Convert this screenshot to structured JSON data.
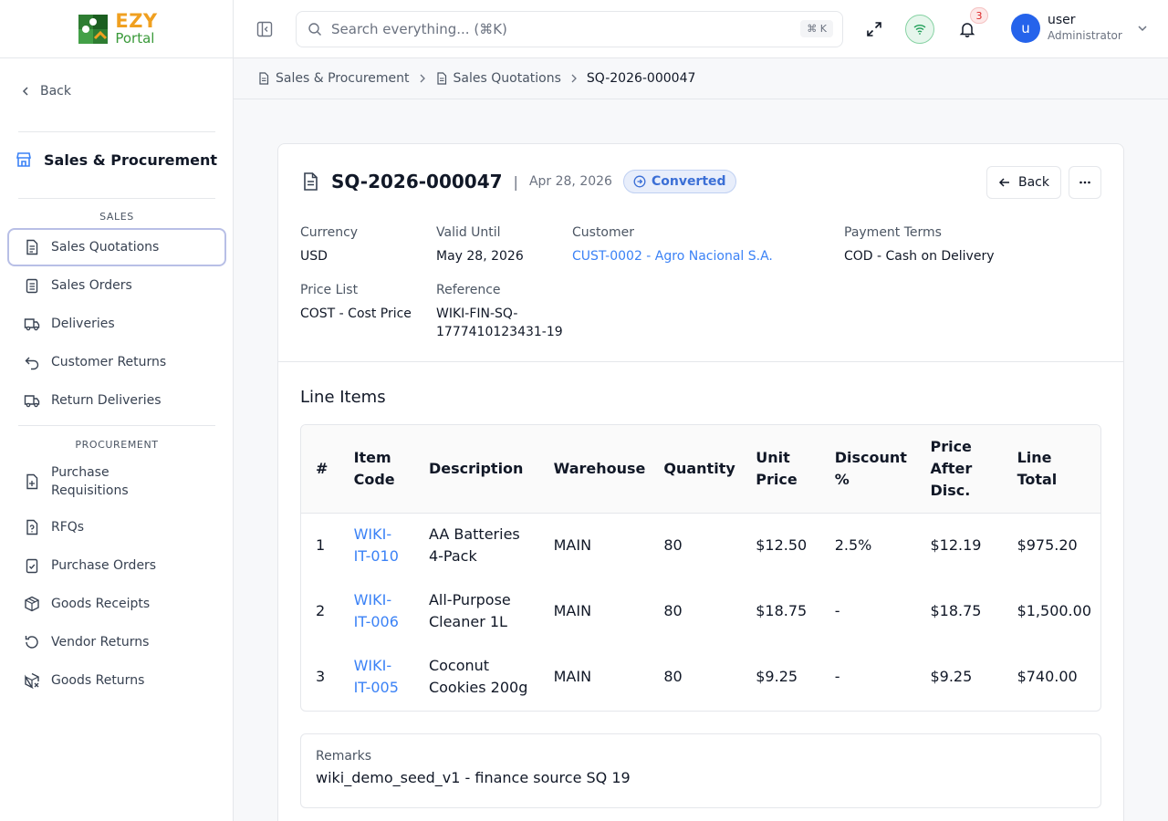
{
  "brand": {
    "logo_line1": "EZY",
    "logo_line2": "Portal"
  },
  "sidebar": {
    "back_label": "Back",
    "module_title": "Sales & Procurement",
    "sections": [
      {
        "label": "SALES",
        "items": [
          {
            "label": "Sales Quotations",
            "icon": "document-icon",
            "active": true
          },
          {
            "label": "Sales Orders",
            "icon": "clipboard-list-icon"
          },
          {
            "label": "Deliveries",
            "icon": "truck-icon"
          },
          {
            "label": "Customer Returns",
            "icon": "undo-arrow-icon"
          },
          {
            "label": "Return Deliveries",
            "icon": "truck-icon"
          }
        ]
      },
      {
        "label": "PROCUREMENT",
        "items": [
          {
            "label": "Purchase Requisitions",
            "icon": "file-plus-icon"
          },
          {
            "label": "RFQs",
            "icon": "file-question-icon"
          },
          {
            "label": "Purchase Orders",
            "icon": "clipboard-check-icon"
          },
          {
            "label": "Goods Receipts",
            "icon": "package-icon"
          },
          {
            "label": "Vendor Returns",
            "icon": "rotate-ccw-icon"
          },
          {
            "label": "Goods Returns",
            "icon": "package-x-icon"
          }
        ]
      }
    ]
  },
  "header": {
    "search_placeholder": "Search everything... (⌘K)",
    "search_shortcut": "⌘ K",
    "notification_count": "3",
    "user_name": "user",
    "user_role": "Administrator",
    "avatar_initial": "u"
  },
  "breadcrumb": [
    "Sales & Procurement",
    "Sales Quotations",
    "SQ-2026-000047"
  ],
  "document": {
    "id": "SQ-2026-000047",
    "separator": "|",
    "date": "Apr 28, 2026",
    "status": "Converted",
    "back_button": "Back",
    "fields": {
      "currency_label": "Currency",
      "currency": "USD",
      "valid_until_label": "Valid Until",
      "valid_until": "May 28, 2026",
      "customer_label": "Customer",
      "customer": "CUST-0002 - Agro Nacional S.A.",
      "payment_terms_label": "Payment Terms",
      "payment_terms": "COD - Cash on Delivery",
      "price_list_label": "Price List",
      "price_list": "COST - Cost Price",
      "reference_label": "Reference",
      "reference_line1": "WIKI-FIN-SQ-",
      "reference_line2": "1777410123431-19"
    }
  },
  "line_items": {
    "title": "Line Items",
    "headers": [
      "#",
      "Item Code",
      "Description",
      "Warehouse",
      "Quantity",
      "Unit Price",
      "Discount %",
      "Price After Disc.",
      "Line Total"
    ],
    "rows": [
      {
        "num": "1",
        "code": "WIKI-IT-010",
        "description": "AA Batteries 4-Pack",
        "warehouse": "MAIN",
        "quantity": "80",
        "unit_price": "$12.50",
        "discount": "2.5%",
        "price_after": "$12.19",
        "total": "$975.20"
      },
      {
        "num": "2",
        "code": "WIKI-IT-006",
        "description": "All-Purpose Cleaner 1L",
        "warehouse": "MAIN",
        "quantity": "80",
        "unit_price": "$18.75",
        "discount": "-",
        "price_after": "$18.75",
        "total": "$1,500.00"
      },
      {
        "num": "3",
        "code": "WIKI-IT-005",
        "description": "Coconut Cookies 200g",
        "warehouse": "MAIN",
        "quantity": "80",
        "unit_price": "$9.25",
        "discount": "-",
        "price_after": "$9.25",
        "total": "$740.00"
      }
    ]
  },
  "remarks": {
    "label": "Remarks",
    "value": "wiki_demo_seed_v1 - finance source SQ 19"
  },
  "colors": {
    "accent": "#3b82f6",
    "status_bg": "#e8eefb",
    "brand_orange": "#f0a020",
    "brand_green": "#3a9a3a"
  }
}
